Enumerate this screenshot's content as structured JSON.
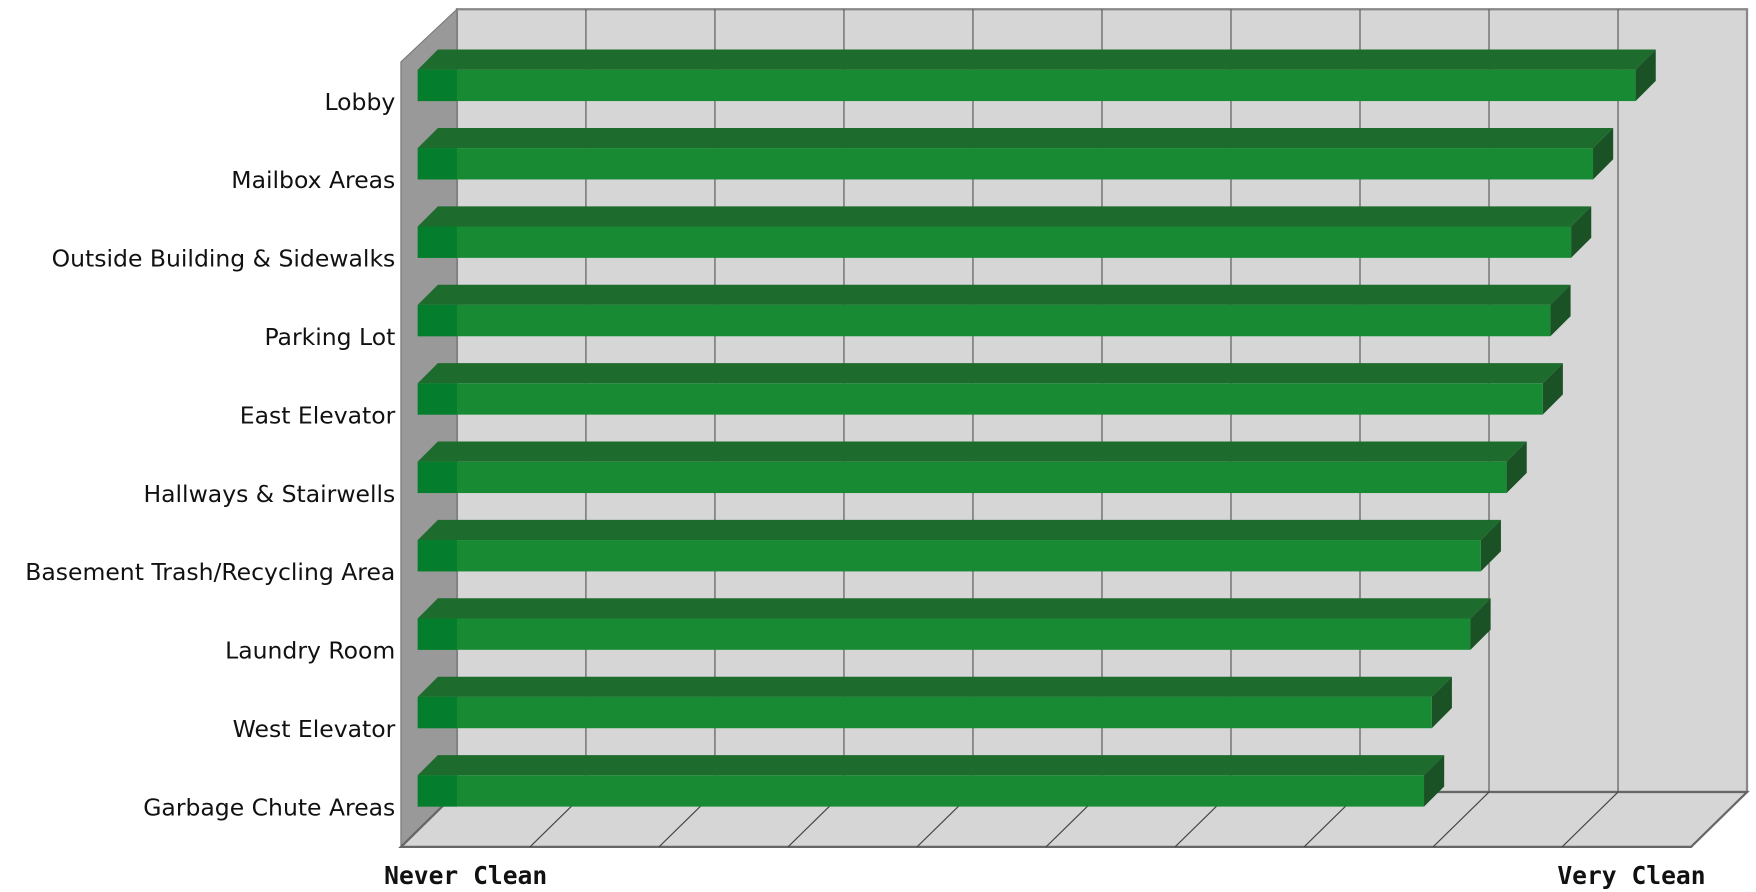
{
  "chart_data": {
    "type": "bar3d-horizontal",
    "categories": [
      "Lobby",
      "Mailbox Areas",
      "Outside Building & Sidewalks",
      "Parking Lot",
      "East Elevator",
      "Hallways & Stairwells",
      "Basement Trash/Recycling Area",
      "Laundry Room",
      "West Elevator",
      "Garbage Chute Areas"
    ],
    "values": [
      9.44,
      9.11,
      8.94,
      8.78,
      8.72,
      8.44,
      8.24,
      8.16,
      7.86,
      7.8
    ],
    "color": "#188a33",
    "xlim": [
      0,
      10
    ],
    "xticks": [
      {
        "value": 0,
        "label": "Never Clean"
      },
      1,
      2,
      3,
      4,
      5,
      6,
      7,
      8,
      9,
      {
        "value": 10,
        "label": "Very Clean"
      }
    ],
    "grid": true
  }
}
